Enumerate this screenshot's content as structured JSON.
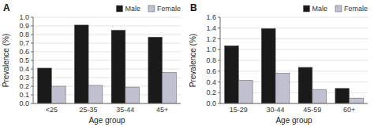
{
  "chart_data": [
    {
      "type": "bar",
      "title": "A",
      "categories": [
        "<25",
        "25-35",
        "35-44",
        "45+"
      ],
      "series": [
        {
          "name": "Male",
          "color": "#1a1a1a",
          "values": [
            0.41,
            0.91,
            0.85,
            0.77
          ]
        },
        {
          "name": "Female",
          "color": "#c0c0d0",
          "values": [
            0.2,
            0.21,
            0.19,
            0.36
          ]
        }
      ],
      "xlabel": "Age group",
      "ylabel": "Prevalence (%)",
      "ylim": [
        0.0,
        1.0
      ],
      "yticks": [
        {
          "value": 0,
          "label": "0.0"
        },
        0.1,
        0.2,
        0.3,
        0.4,
        0.5,
        0.6,
        0.7,
        0.8,
        0.9,
        {
          "value": 1,
          "label": "1.0"
        }
      ],
      "grid": true,
      "legend": "upper right"
    },
    {
      "type": "bar",
      "title": "B",
      "categories": [
        "15-29",
        "30-44",
        "45-59",
        "60+"
      ],
      "series": [
        {
          "name": "Male",
          "color": "#1a1a1a",
          "values": [
            1.07,
            1.39,
            0.67,
            0.28
          ]
        },
        {
          "name": "Female",
          "color": "#c0c0d0",
          "values": [
            0.43,
            0.56,
            0.26,
            0.1
          ]
        }
      ],
      "xlabel": "Age group",
      "ylabel": "Prevalence (%)",
      "ylim": [
        0.0,
        1.6
      ],
      "yticks": [
        {
          "value": 0,
          "label": "0.0"
        },
        0.2,
        0.4,
        0.6,
        0.8,
        {
          "value": 1,
          "label": "1.0"
        },
        1.2,
        1.4,
        1.6
      ],
      "grid": true,
      "legend": "upper right"
    }
  ]
}
